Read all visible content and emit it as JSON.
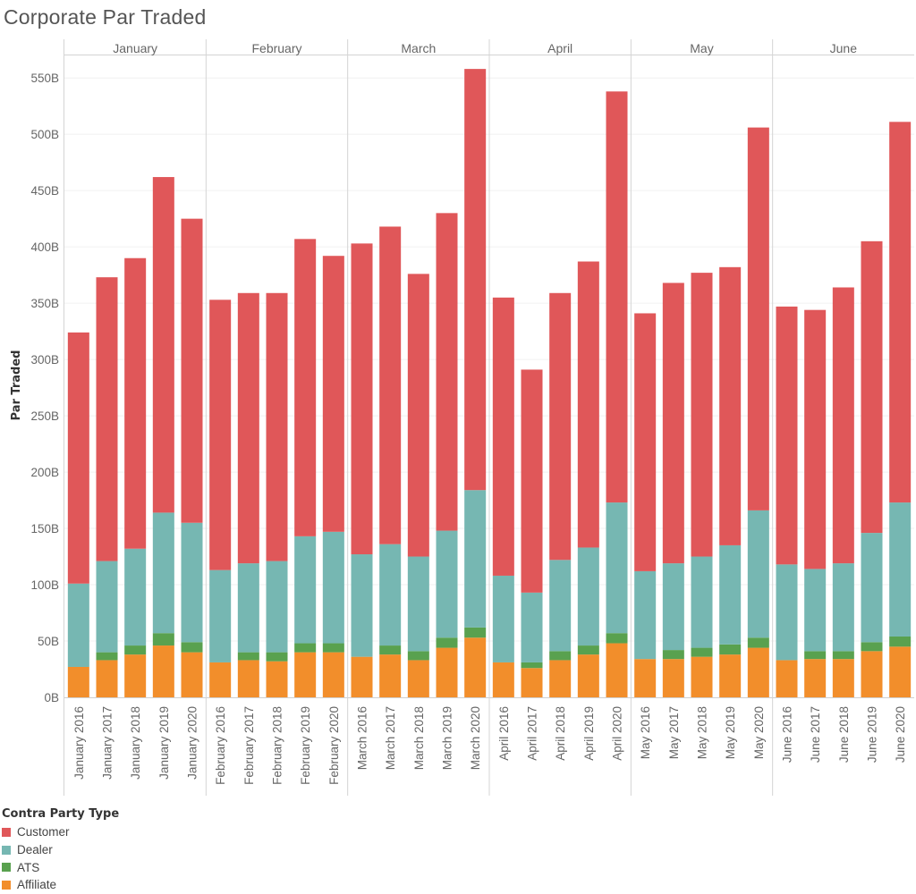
{
  "colors": {
    "Customer": "#e05759",
    "Dealer": "#76b7b2",
    "ATS": "#59a14f",
    "Affiliate": "#f28e2b"
  },
  "chart_data": {
    "type": "bar",
    "stacked": true,
    "title": "Corporate Par Traded",
    "ylabel": "Par Traded",
    "xlabel": "",
    "ylim": [
      0,
      570
    ],
    "yticks": [
      0,
      50,
      100,
      150,
      200,
      250,
      300,
      350,
      400,
      450,
      500,
      550
    ],
    "ytick_labels": [
      "0B",
      "50B",
      "100B",
      "150B",
      "200B",
      "250B",
      "300B",
      "350B",
      "400B",
      "450B",
      "500B",
      "550B"
    ],
    "panels": [
      {
        "name": "January",
        "categories": [
          "January 2016",
          "January 2017",
          "January 2018",
          "January 2019",
          "January 2020"
        ]
      },
      {
        "name": "February",
        "categories": [
          "February 2016",
          "February 2017",
          "February 2018",
          "February 2019",
          "February 2020"
        ]
      },
      {
        "name": "March",
        "categories": [
          "March 2016",
          "March 2017",
          "March 2018",
          "March 2019",
          "March 2020"
        ]
      },
      {
        "name": "April",
        "categories": [
          "April 2016",
          "April 2017",
          "April 2018",
          "April 2019",
          "April 2020"
        ]
      },
      {
        "name": "May",
        "categories": [
          "May 2016",
          "May 2017",
          "May 2018",
          "May 2019",
          "May 2020"
        ]
      },
      {
        "name": "June",
        "categories": [
          "June 2016",
          "June 2017",
          "June 2018",
          "June 2019",
          "June 2020"
        ]
      }
    ],
    "legend_title": "Contra Party Type",
    "legend": [
      "Customer",
      "Dealer",
      "ATS",
      "Affiliate"
    ],
    "series": [
      {
        "name": "Affiliate",
        "values": [
          27,
          33,
          38,
          46,
          40,
          31,
          33,
          32,
          40,
          40,
          36,
          38,
          33,
          44,
          53,
          31,
          26,
          33,
          38,
          48,
          34,
          34,
          36,
          38,
          44,
          33,
          34,
          34,
          41,
          45
        ]
      },
      {
        "name": "ATS",
        "values": [
          0,
          7,
          8,
          11,
          9,
          0,
          7,
          8,
          8,
          8,
          0,
          8,
          8,
          9,
          9,
          0,
          5,
          8,
          8,
          9,
          0,
          8,
          8,
          9,
          9,
          0,
          7,
          7,
          8,
          9
        ]
      },
      {
        "name": "Dealer",
        "values": [
          74,
          81,
          86,
          107,
          106,
          82,
          79,
          81,
          95,
          99,
          91,
          90,
          84,
          95,
          122,
          77,
          62,
          81,
          87,
          116,
          78,
          77,
          81,
          88,
          113,
          85,
          73,
          78,
          97,
          119
        ]
      },
      {
        "name": "Customer",
        "values": [
          223,
          252,
          258,
          298,
          270,
          240,
          240,
          238,
          264,
          245,
          276,
          282,
          251,
          282,
          374,
          247,
          198,
          237,
          254,
          365,
          229,
          249,
          252,
          247,
          340,
          229,
          230,
          245,
          259,
          338
        ]
      }
    ]
  }
}
